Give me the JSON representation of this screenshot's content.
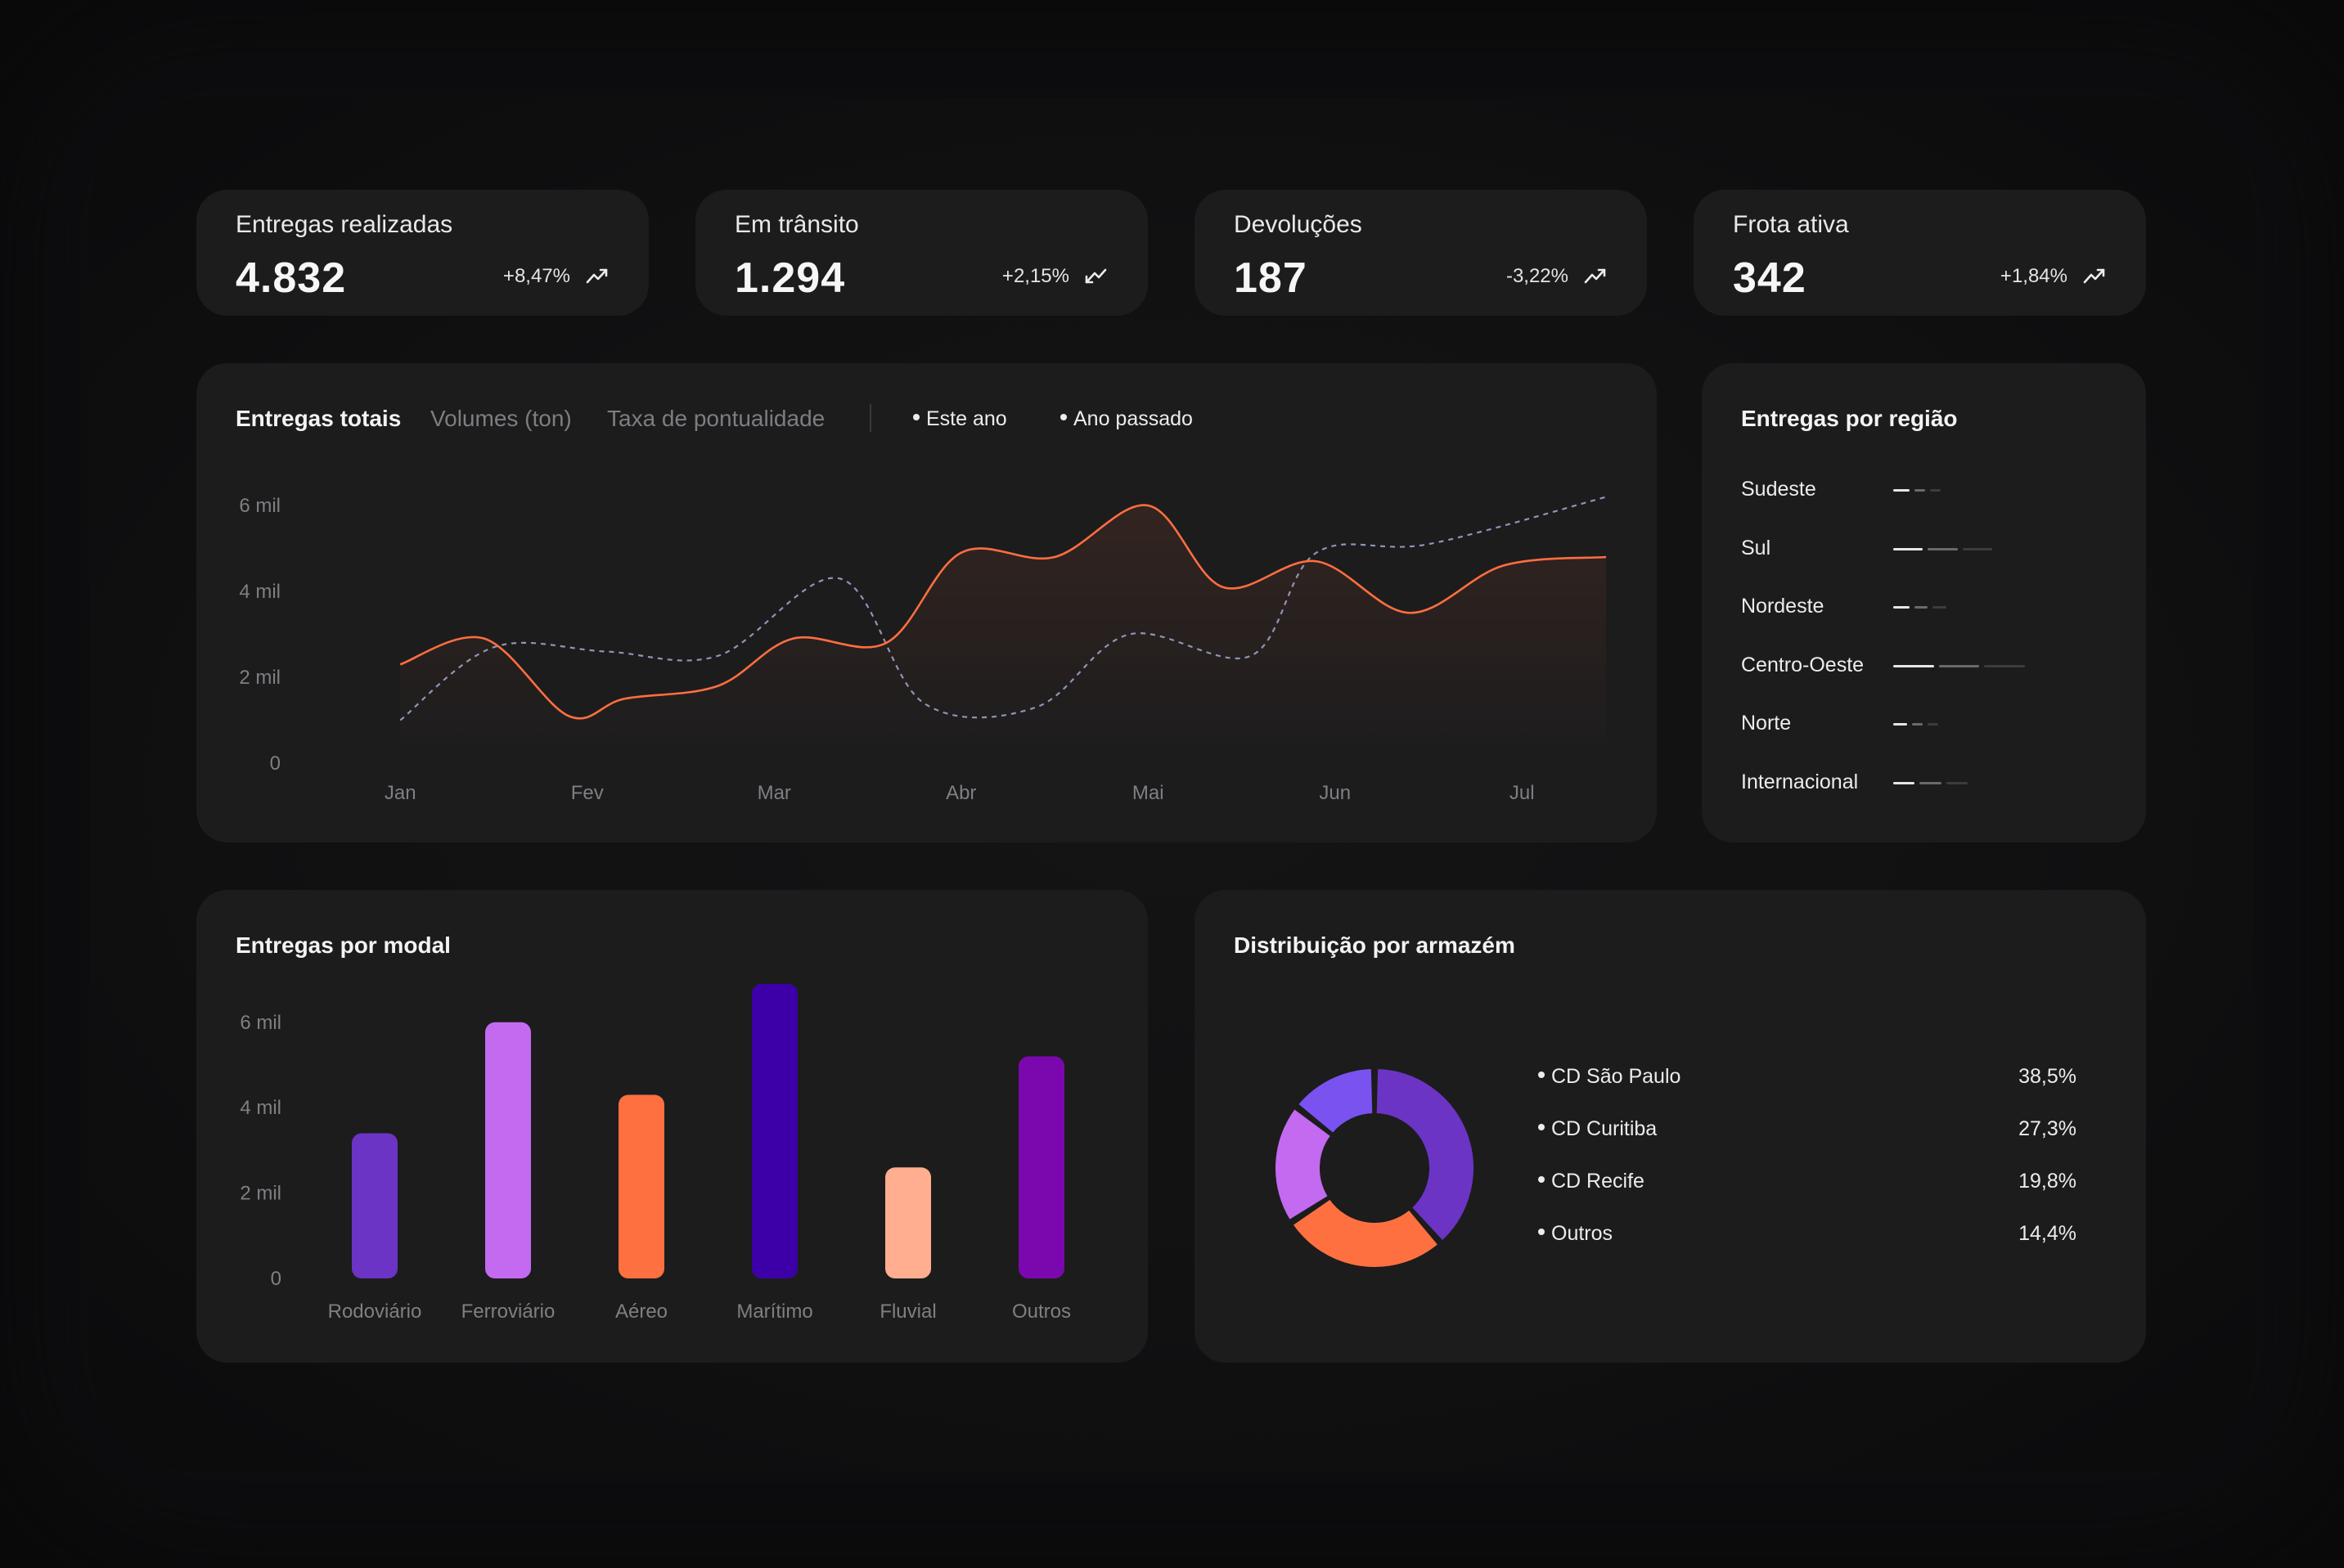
{
  "kpis": [
    {
      "title": "Entregas realizadas",
      "value": "4.832",
      "delta": "+8,47%",
      "trend": "up-arrow-icon"
    },
    {
      "title": "Em trânsito",
      "value": "1.294",
      "delta": "+2,15%",
      "trend": "down-arrow-icon"
    },
    {
      "title": "Devoluções",
      "value": "187",
      "delta": "-3,22%",
      "trend": "up-arrow-icon"
    },
    {
      "title": "Frota ativa",
      "value": "342",
      "delta": "+1,84%",
      "trend": "up-arrow-icon"
    }
  ],
  "line_panel": {
    "tabs": [
      "Entregas totais",
      "Volumes (ton)",
      "Taxa de pontualidade"
    ],
    "active_tab": "Entregas totais",
    "legend": [
      "Este ano",
      "Ano passado"
    ]
  },
  "region_panel": {
    "title": "Entregas por região",
    "regions": [
      {
        "label": "Sudeste",
        "segments": [
          0.3,
          0.2,
          0.2
        ]
      },
      {
        "label": "Sul",
        "segments": [
          0.55,
          0.55,
          0.55
        ]
      },
      {
        "label": "Nordeste",
        "segments": [
          0.3,
          0.25,
          0.25
        ]
      },
      {
        "label": "Centro-Oeste",
        "segments": [
          0.75,
          0.75,
          0.75
        ]
      },
      {
        "label": "Norte",
        "segments": [
          0.25,
          0.2,
          0.2
        ]
      },
      {
        "label": "Internacional",
        "segments": [
          0.4,
          0.4,
          0.4
        ]
      }
    ]
  },
  "modal_panel": {
    "title": "Entregas por modal"
  },
  "warehouse_panel": {
    "title": "Distribuição por armazém",
    "items": [
      {
        "label": "CD São Paulo",
        "pct": "38,5%"
      },
      {
        "label": "CD Curitiba",
        "pct": "27,3%"
      },
      {
        "label": "CD Recife",
        "pct": "19,8%"
      },
      {
        "label": "Outros",
        "pct": "14,4%"
      }
    ]
  },
  "colors": {
    "this_year": "#ff6e40",
    "last_year": "#8f95b8",
    "violet": "#6b34c4",
    "lilac": "#c36af0",
    "orange": "#ff7040",
    "indigo": "#3d00a8",
    "peach": "#ffae8f",
    "purple": "#7b08ae"
  },
  "chart_data": [
    {
      "type": "line",
      "x": [
        "Jan",
        "Fev",
        "Mar",
        "Abr",
        "Mai",
        "Jun",
        "Jul"
      ],
      "yticks": [
        "0",
        "2 mil",
        "4 mil",
        "6 mil"
      ],
      "ylim": [
        0,
        6
      ],
      "series": [
        {
          "name": "Este ano",
          "points": [
            [
              0.5,
              2.3
            ],
            [
              0.95,
              2.9
            ],
            [
              1.4,
              1.1
            ],
            [
              1.7,
              1.5
            ],
            [
              2.2,
              1.8
            ],
            [
              2.6,
              2.9
            ],
            [
              3.1,
              2.8
            ],
            [
              3.5,
              4.9
            ],
            [
              4.0,
              4.8
            ],
            [
              4.5,
              6.0
            ],
            [
              4.9,
              4.1
            ],
            [
              5.4,
              4.7
            ],
            [
              5.9,
              3.5
            ],
            [
              6.4,
              4.6
            ],
            [
              6.95,
              4.8
            ]
          ]
        },
        {
          "name": "Ano passado",
          "points": [
            [
              0.5,
              1.0
            ],
            [
              1.0,
              2.7
            ],
            [
              1.6,
              2.6
            ],
            [
              2.2,
              2.5
            ],
            [
              2.85,
              4.3
            ],
            [
              3.3,
              1.4
            ],
            [
              3.9,
              1.3
            ],
            [
              4.4,
              3.0
            ],
            [
              5.05,
              2.5
            ],
            [
              5.4,
              4.9
            ],
            [
              6.0,
              5.1
            ],
            [
              6.95,
              6.2
            ]
          ]
        }
      ]
    },
    {
      "type": "bar",
      "categories": [
        "Rodoviário",
        "Ferroviário",
        "Aéreo",
        "Marítimo",
        "Fluvial",
        "Outros"
      ],
      "values": [
        3.4,
        6.0,
        4.3,
        6.9,
        2.6,
        5.2
      ],
      "yticks": [
        "0",
        "2 mil",
        "4 mil",
        "6 mil"
      ],
      "ylim": [
        0,
        6.9
      ]
    },
    {
      "type": "pie",
      "labels": [
        "CD São Paulo",
        "CD Curitiba",
        "CD Recife",
        "Outros"
      ],
      "values": [
        38.5,
        27.3,
        19.8,
        14.4
      ]
    }
  ]
}
